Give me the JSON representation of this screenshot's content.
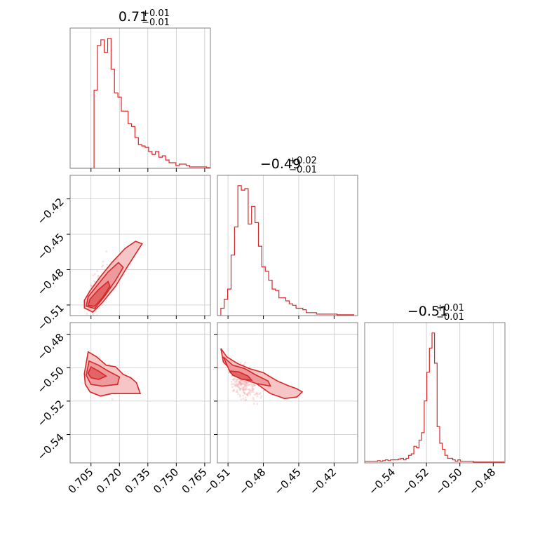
{
  "chart_data": {
    "type": "corner",
    "parameters": [
      {
        "index": 0,
        "title": "$0.71^{+0.01}_{-0.01}$",
        "title_main": "0.71",
        "title_plus": "+0.01",
        "title_minus": "−0.01",
        "range": [
          0.694,
          0.768
        ],
        "ticks": [
          0.705,
          0.72,
          0.735,
          0.75,
          0.765
        ],
        "tick_labels": [
          "0.705",
          "0.720",
          "0.735",
          "0.750",
          "0.765"
        ]
      },
      {
        "index": 1,
        "title_main": "−0.49",
        "title_plus": "+0.02",
        "title_minus": "−0.01",
        "range": [
          -0.519,
          -0.4
        ],
        "ticks": [
          -0.51,
          -0.48,
          -0.45,
          -0.42
        ],
        "tick_labels": [
          "−0.51",
          "−0.48",
          "−0.45",
          "−0.42"
        ]
      },
      {
        "index": 2,
        "title_main": "−0.51",
        "title_plus": "+0.01",
        "title_minus": "−0.01",
        "range": [
          -0.557,
          -0.473
        ],
        "ticks": [
          -0.54,
          -0.52,
          -0.5,
          -0.48
        ],
        "tick_labels": [
          "−0.54",
          "−0.52",
          "−0.50",
          "−0.48"
        ]
      }
    ],
    "histograms": [
      {
        "param": 0,
        "bin_edges_start": 0.694,
        "bin_width": 0.0018,
        "counts": [
          0,
          0,
          0,
          0,
          0,
          0,
          0,
          0.56,
          0.88,
          0.92,
          0.83,
          0.93,
          0.71,
          0.54,
          0.51,
          0.41,
          0.41,
          0.32,
          0.3,
          0.22,
          0.17,
          0.16,
          0.15,
          0.12,
          0.1,
          0.12,
          0.08,
          0.09,
          0.06,
          0.04,
          0.04,
          0.02,
          0.03,
          0.03,
          0.02,
          0.01,
          0.01,
          0.01,
          0.01,
          0.01,
          0.005
        ]
      },
      {
        "param": 1,
        "bin_edges_start": -0.519,
        "bin_width": 0.0029,
        "counts": [
          0,
          0.05,
          0.11,
          0.18,
          0.41,
          0.6,
          0.88,
          0.85,
          0.86,
          0.62,
          0.74,
          0.63,
          0.47,
          0.33,
          0.3,
          0.24,
          0.18,
          0.17,
          0.12,
          0.12,
          0.1,
          0.08,
          0.07,
          0.05,
          0.05,
          0.04,
          0.02,
          0.02,
          0.02,
          0.01,
          0.01,
          0.01,
          0.01,
          0.01,
          0.01,
          0.005,
          0.005,
          0.005,
          0.005,
          0.005
        ]
      },
      {
        "param": 2,
        "bin_edges_start": -0.557,
        "bin_width": 0.00155,
        "counts": [
          0.01,
          0.01,
          0.01,
          0.01,
          0.01,
          0.015,
          0.01,
          0.015,
          0.02,
          0.015,
          0.02,
          0.02,
          0.02,
          0.025,
          0.03,
          0.02,
          0.03,
          0.05,
          0.06,
          0.11,
          0.1,
          0.15,
          0.2,
          0.41,
          0.6,
          0.76,
          0.86,
          0.66,
          0.24,
          0.13,
          0.09,
          0.05,
          0.03,
          0.03,
          0.02,
          0.01,
          0.02,
          0.01,
          0.01,
          0.01,
          0.01,
          0.01,
          0.005,
          0.005,
          0.005,
          0.005,
          0.005,
          0.005,
          0.005,
          0.005,
          0.005,
          0.005,
          0.005,
          0.005
        ]
      }
    ],
    "pairs": [
      {
        "x_param": 0,
        "y_param": 1,
        "center": [
          0.706,
          -0.508
        ],
        "direction": [
          1,
          4.2
        ],
        "contour_levels": [
          [
            [
              0.7015,
              -0.5125
            ],
            [
              0.706,
              -0.516
            ],
            [
              0.711,
              -0.508
            ],
            [
              0.718,
              -0.494
            ],
            [
              0.724,
              -0.478
            ],
            [
              0.73,
              -0.463
            ],
            [
              0.732,
              -0.458
            ],
            [
              0.7285,
              -0.456
            ],
            [
              0.723,
              -0.462
            ],
            [
              0.716,
              -0.474
            ],
            [
              0.71,
              -0.486
            ],
            [
              0.7045,
              -0.498
            ],
            [
              0.7015,
              -0.506
            ]
          ],
          [
            [
              0.7025,
              -0.511
            ],
            [
              0.707,
              -0.513
            ],
            [
              0.712,
              -0.503
            ],
            [
              0.718,
              -0.489
            ],
            [
              0.722,
              -0.478
            ],
            [
              0.7195,
              -0.474
            ],
            [
              0.714,
              -0.482
            ],
            [
              0.708,
              -0.494
            ],
            [
              0.7035,
              -0.503
            ]
          ],
          [
            [
              0.7035,
              -0.5105
            ],
            [
              0.707,
              -0.511
            ],
            [
              0.711,
              -0.504
            ],
            [
              0.715,
              -0.494
            ],
            [
              0.714,
              -0.49
            ],
            [
              0.709,
              -0.497
            ],
            [
              0.7045,
              -0.505
            ]
          ]
        ]
      },
      {
        "x_param": 0,
        "y_param": 2,
        "center": [
          0.706,
          -0.503
        ],
        "direction": [
          1,
          -0.55
        ],
        "contour_levels": [
          [
            [
              0.7015,
              -0.5035
            ],
            [
              0.7035,
              -0.4905
            ],
            [
              0.708,
              -0.4935
            ],
            [
              0.713,
              -0.4985
            ],
            [
              0.718,
              -0.4995
            ],
            [
              0.722,
              -0.504
            ],
            [
              0.726,
              -0.506
            ],
            [
              0.729,
              -0.509
            ],
            [
              0.731,
              -0.5155
            ],
            [
              0.724,
              -0.5155
            ],
            [
              0.716,
              -0.5155
            ],
            [
              0.71,
              -0.517
            ],
            [
              0.7045,
              -0.5145
            ],
            [
              0.702,
              -0.51
            ]
          ],
          [
            [
              0.7025,
              -0.5045
            ],
            [
              0.704,
              -0.496
            ],
            [
              0.709,
              -0.4985
            ],
            [
              0.714,
              -0.502
            ],
            [
              0.72,
              -0.5055
            ],
            [
              0.719,
              -0.51
            ],
            [
              0.711,
              -0.511
            ],
            [
              0.705,
              -0.51
            ]
          ],
          [
            [
              0.7035,
              -0.5035
            ],
            [
              0.705,
              -0.4995
            ],
            [
              0.709,
              -0.502
            ],
            [
              0.713,
              -0.505
            ],
            [
              0.709,
              -0.507
            ],
            [
              0.705,
              -0.506
            ]
          ]
        ]
      },
      {
        "x_param": 1,
        "y_param": 2,
        "center": [
          -0.505,
          -0.505
        ],
        "direction": [
          1,
          -0.45
        ],
        "contour_levels": [
          [
            [
              -0.516,
              -0.4885
            ],
            [
              -0.511,
              -0.4935
            ],
            [
              -0.502,
              -0.4975
            ],
            [
              -0.492,
              -0.5005
            ],
            [
              -0.48,
              -0.503
            ],
            [
              -0.468,
              -0.508
            ],
            [
              -0.458,
              -0.511
            ],
            [
              -0.452,
              -0.5125
            ],
            [
              -0.447,
              -0.5145
            ],
            [
              -0.4515,
              -0.5175
            ],
            [
              -0.462,
              -0.5185
            ],
            [
              -0.474,
              -0.5155
            ],
            [
              -0.486,
              -0.5095
            ],
            [
              -0.498,
              -0.5045
            ],
            [
              -0.508,
              -0.501
            ],
            [
              -0.514,
              -0.4965
            ]
          ],
          [
            [
              -0.514,
              -0.4935
            ],
            [
              -0.506,
              -0.4985
            ],
            [
              -0.496,
              -0.5005
            ],
            [
              -0.486,
              -0.5045
            ],
            [
              -0.476,
              -0.508
            ],
            [
              -0.474,
              -0.511
            ],
            [
              -0.486,
              -0.5095
            ],
            [
              -0.498,
              -0.5065
            ],
            [
              -0.508,
              -0.503
            ]
          ],
          [
            [
              -0.5085,
              -0.502
            ],
            [
              -0.501,
              -0.5025
            ],
            [
              -0.493,
              -0.505
            ],
            [
              -0.49,
              -0.5075
            ],
            [
              -0.498,
              -0.507
            ],
            [
              -0.506,
              -0.5045
            ]
          ]
        ]
      }
    ],
    "colors": {
      "hist_line": "#d62728",
      "contour_line": "#d62728",
      "fill_outer": "#f6c5c6",
      "fill_mid": "#ee9a9c",
      "fill_inner": "#e26466",
      "scatter": "#f4a7a8",
      "grid": "#c8c8c8",
      "frame": "#808080"
    },
    "grid": true
  }
}
